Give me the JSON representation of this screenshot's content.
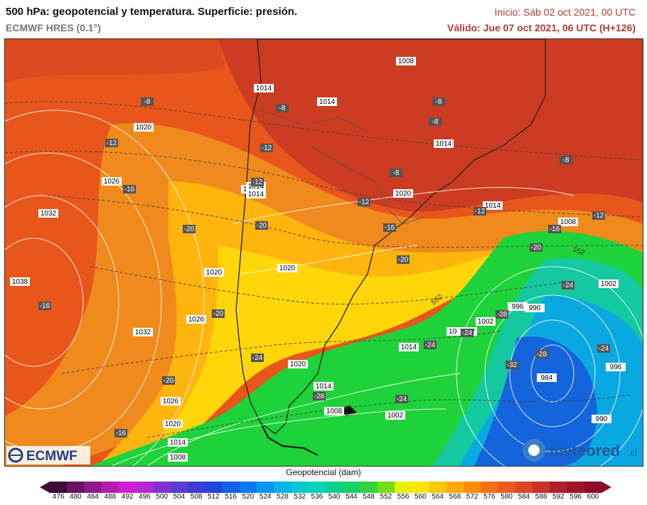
{
  "header": {
    "title": "500 hPa: geopotencial y temperatura. Superficie: presión.",
    "model": "ECMWF HRES (0.1°)",
    "init": "Inicio: Sáb 02 oct 2021, 00 UTC",
    "valid": "Válido: Jue 07 oct 2021, 06 UTC (H+126)"
  },
  "logos": {
    "left": "ECMWF",
    "right_main": "meteored",
    "right_suffix": ".cl"
  },
  "legend": {
    "title": "Geopotencial (dam)",
    "ticks": [
      "476",
      "480",
      "484",
      "488",
      "492",
      "496",
      "500",
      "504",
      "508",
      "512",
      "516",
      "520",
      "524",
      "528",
      "532",
      "536",
      "540",
      "544",
      "548",
      "552",
      "556",
      "560",
      "564",
      "568",
      "572",
      "576",
      "580",
      "584",
      "588",
      "592",
      "596",
      "600"
    ],
    "colors": [
      "#3d0a3a",
      "#6a1466",
      "#8c1a8a",
      "#b41eb0",
      "#d21ed2",
      "#b428d2",
      "#8232d2",
      "#5a3cd2",
      "#3c3cd2",
      "#1e46dc",
      "#1460e6",
      "#0a78f0",
      "#0a96f0",
      "#0ab4e6",
      "#0ac8d2",
      "#0ad2b4",
      "#0ad28c",
      "#14d264",
      "#32d23c",
      "#78dc14",
      "#e6f00a",
      "#ffe60a",
      "#ffc80a",
      "#ffaa0a",
      "#ff8c0a",
      "#f57014",
      "#eb5a1e",
      "#dc4628",
      "#c83228",
      "#b41e28",
      "#a01428",
      "#8c0a2a"
    ]
  },
  "map": {
    "pressure_labels": [
      "1008",
      "1014",
      "1014",
      "1014",
      "1020",
      "1026",
      "1032",
      "1020",
      "1014",
      "1014",
      "1020",
      "1014",
      "1008",
      "1002",
      "1038",
      "1020",
      "1032",
      "1026",
      "1014",
      "1002",
      "996",
      "990",
      "1002",
      "1014",
      "1020",
      "1014",
      "1008",
      "1002",
      "984",
      "996",
      "990",
      "1026",
      "1020",
      "1014",
      "1008",
      "1002"
    ],
    "temp_labels": [
      "-8",
      "-8",
      "-8",
      "-8",
      "-8",
      "-8",
      "-12",
      "-12",
      "-16",
      "-12",
      "-12",
      "-12",
      "-12",
      "-16",
      "-20",
      "-20",
      "-16",
      "-20",
      "-16",
      "-20",
      "-20",
      "-24",
      "-24",
      "-28",
      "-24",
      "-28",
      "-24",
      "-32",
      "-28",
      "-24",
      "-24",
      "-20",
      "-16"
    ],
    "contour_labels": [
      "552",
      "552"
    ]
  }
}
